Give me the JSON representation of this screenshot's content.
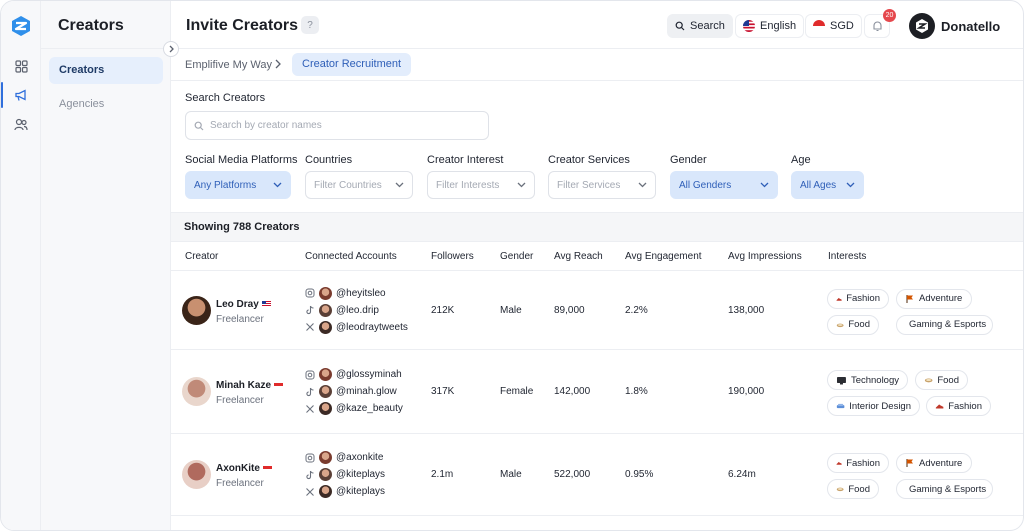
{
  "app": {
    "section_title": "Creators",
    "page_title": "Invite Creators"
  },
  "sidebar": {
    "items": [
      {
        "label": "Creators"
      },
      {
        "label": "Agencies"
      }
    ]
  },
  "header": {
    "search_label": "Search",
    "language": "English",
    "currency": "SGD",
    "notifications": "20",
    "user_name": "Donatello"
  },
  "breadcrumb": {
    "parent": "Emplifive My Way",
    "current": "Creator Recruitment"
  },
  "search": {
    "label": "Search Creators",
    "placeholder": "Search by creator names",
    "value": ""
  },
  "filters": [
    {
      "label": "Social Media Platforms",
      "value": "Any Platforms",
      "active": true
    },
    {
      "label": "Countries",
      "value": "Filter Countries",
      "active": false
    },
    {
      "label": "Creator Interest",
      "value": "Filter Interests",
      "active": false
    },
    {
      "label": "Creator Services",
      "value": "Filter Services",
      "active": false
    },
    {
      "label": "Gender",
      "value": "All Genders",
      "active": true
    },
    {
      "label": "Age",
      "value": "All Ages",
      "active": true
    }
  ],
  "results": {
    "summary": "Showing 788 Creators"
  },
  "table": {
    "columns": [
      "Creator",
      "Connected Accounts",
      "Followers",
      "Gender",
      "Avg Reach",
      "Avg Engagement",
      "Avg Impressions",
      "Interests"
    ],
    "rows": [
      {
        "name": "Leo Dray",
        "role": "Freelancer",
        "flag": "us",
        "accounts": [
          "@heyitsleo",
          "@leo.drip",
          "@leodraytweets"
        ],
        "followers": "212K",
        "gender": "Male",
        "reach": "89,000",
        "engagement": "2.2%",
        "impressions": "138,000",
        "interests": [
          "Fashion",
          "Adventure",
          "Food",
          "Gaming & Esports"
        ]
      },
      {
        "name": "Minah Kaze",
        "role": "Freelancer",
        "flag": "sg",
        "accounts": [
          "@glossyminah",
          "@minah.glow",
          "@kaze_beauty"
        ],
        "followers": "317K",
        "gender": "Female",
        "reach": "142,000",
        "engagement": "1.8%",
        "impressions": "190,000",
        "interests": [
          "Technology",
          "Food",
          "Interior Design",
          "Fashion"
        ]
      },
      {
        "name": "AxonKite",
        "role": "Freelancer",
        "flag": "sg",
        "accounts": [
          "@axonkite",
          "@kiteplays",
          "@kiteplays"
        ],
        "followers": "2.1m",
        "gender": "Male",
        "reach": "522,000",
        "engagement": "0.95%",
        "impressions": "6.24m",
        "interests": [
          "Fashion",
          "Adventure",
          "Food",
          "Gaming & Esports"
        ]
      }
    ]
  },
  "colors": {
    "accent": "#2f6fdc",
    "active_bg": "#d9e7fb",
    "badge": "#e5484d"
  }
}
